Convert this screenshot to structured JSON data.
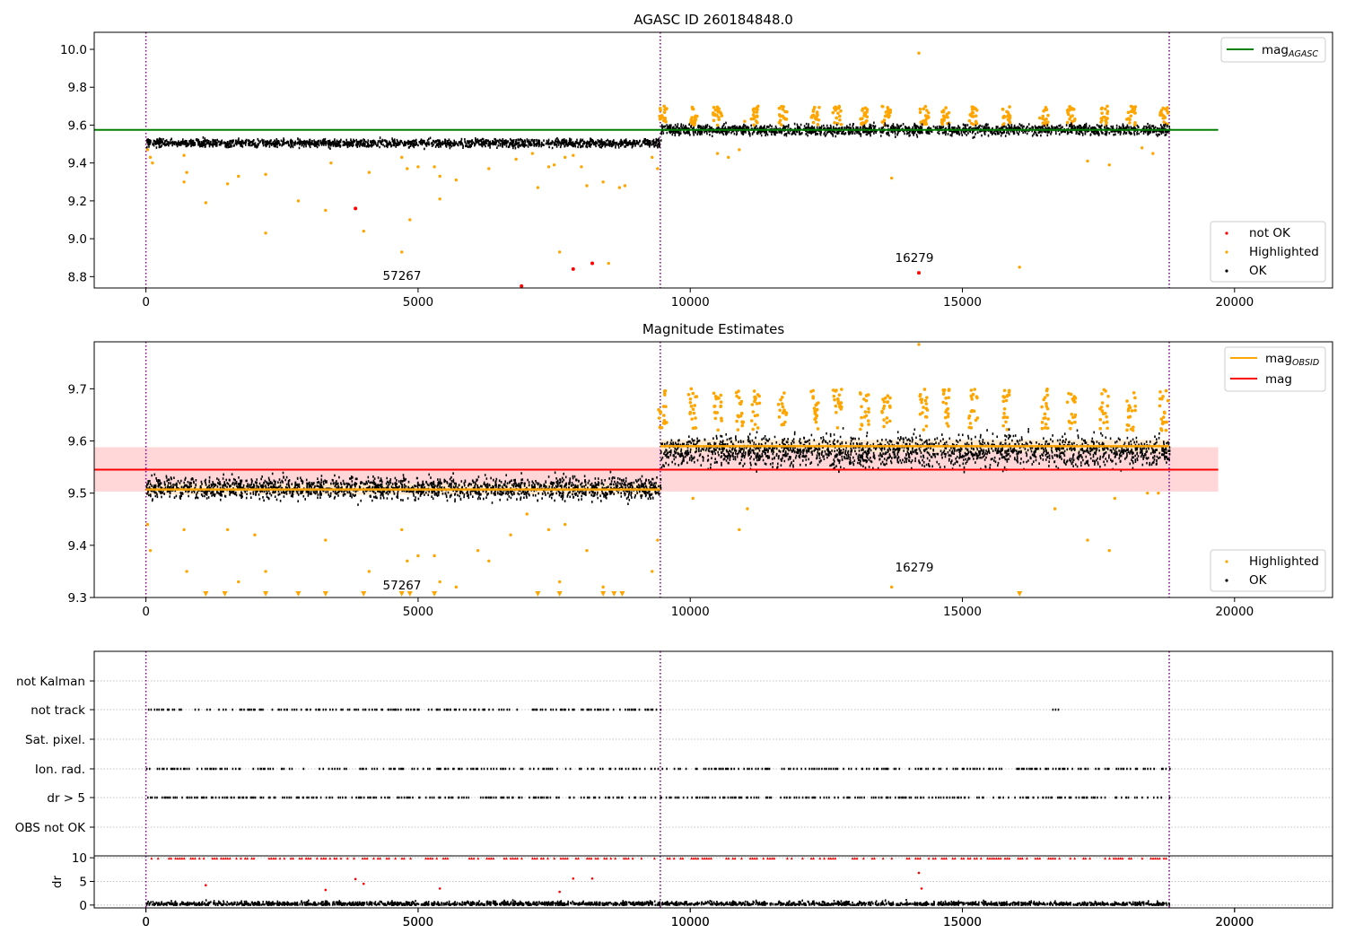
{
  "chart_data": [
    {
      "type": "scatter",
      "title": "AGASC ID 260184848.0",
      "xlim": [
        -950,
        21800
      ],
      "ylim": [
        8.74,
        10.09
      ],
      "x_ticks": [
        0,
        5000,
        10000,
        15000,
        20000
      ],
      "y_ticks": [
        8.8,
        9.0,
        9.2,
        9.4,
        9.6,
        9.8,
        10.0
      ],
      "y_tick_labels": [
        "8.8",
        "9.0",
        "9.2",
        "9.4",
        "9.6",
        "9.8",
        "10.0"
      ],
      "vlines": [
        0,
        9450,
        18800
      ],
      "reference_line": {
        "label": "mag",
        "label_sub": "AGASC",
        "y": 9.575,
        "x_range": [
          -950,
          19700
        ],
        "color": "#008000"
      },
      "legend_top": "top-right",
      "legend_bottom": "bottom-right",
      "legend_bottom_entries": [
        {
          "label": "not OK",
          "color": "#ff0000"
        },
        {
          "label": "Highlighted",
          "color": "#ffa500"
        },
        {
          "label": "OK",
          "color": "#000000"
        }
      ],
      "ok_bands": [
        {
          "x_range": [
            0,
            9450
          ],
          "center": 9.505,
          "width": 0.022
        },
        {
          "x_range": [
            9450,
            18800
          ],
          "center": 9.575,
          "width": 0.03
        }
      ],
      "highlighted_points": [
        [
          30,
          9.47
        ],
        [
          80,
          9.43
        ],
        [
          120,
          9.4
        ],
        [
          700,
          9.44
        ],
        [
          700,
          9.3
        ],
        [
          750,
          9.35
        ],
        [
          1100,
          9.19
        ],
        [
          1500,
          9.29
        ],
        [
          1700,
          9.33
        ],
        [
          2200,
          9.34
        ],
        [
          2200,
          9.03
        ],
        [
          2800,
          9.2
        ],
        [
          3300,
          9.15
        ],
        [
          3400,
          9.4
        ],
        [
          4000,
          9.04
        ],
        [
          4100,
          9.35
        ],
        [
          4700,
          8.93
        ],
        [
          4700,
          9.43
        ],
        [
          4800,
          9.37
        ],
        [
          4850,
          9.1
        ],
        [
          5000,
          9.38
        ],
        [
          5300,
          9.38
        ],
        [
          5400,
          9.21
        ],
        [
          5400,
          9.33
        ],
        [
          5700,
          9.31
        ],
        [
          6300,
          9.37
        ],
        [
          6800,
          9.42
        ],
        [
          7100,
          9.45
        ],
        [
          7200,
          9.27
        ],
        [
          7400,
          9.38
        ],
        [
          7500,
          9.39
        ],
        [
          7600,
          8.93
        ],
        [
          7700,
          9.43
        ],
        [
          7850,
          9.44
        ],
        [
          8000,
          9.38
        ],
        [
          8100,
          9.28
        ],
        [
          8400,
          9.3
        ],
        [
          8500,
          8.87
        ],
        [
          8700,
          9.27
        ],
        [
          8800,
          9.28
        ],
        [
          9300,
          9.43
        ],
        [
          9400,
          9.37
        ],
        [
          10500,
          9.6
        ],
        [
          10500,
          9.45
        ],
        [
          10700,
          9.43
        ],
        [
          10900,
          9.47
        ],
        [
          11000,
          9.62
        ],
        [
          13700,
          9.32
        ],
        [
          14200,
          9.98
        ],
        [
          16050,
          8.85
        ],
        [
          17300,
          9.41
        ],
        [
          17700,
          9.39
        ],
        [
          18300,
          9.48
        ],
        [
          18500,
          9.45
        ]
      ],
      "highlighted_clusters_x": [
        9500,
        10050,
        10500,
        11200,
        11700,
        12300,
        12700,
        13200,
        13600,
        14300,
        14700,
        15200,
        15800,
        16500,
        17000,
        17600,
        18100,
        18700
      ],
      "highlighted_cluster_range": [
        9.6,
        9.7
      ],
      "not_ok_points": [
        [
          3850,
          9.16
        ],
        [
          6900,
          8.75
        ],
        [
          7850,
          8.84
        ],
        [
          8200,
          8.87
        ],
        [
          14200,
          8.82
        ]
      ],
      "annotations": [
        {
          "text": "57267",
          "x": 4700,
          "y": 8.76
        },
        {
          "text": "16279",
          "x": 14200,
          "y": 8.86
        }
      ]
    },
    {
      "type": "scatter",
      "title": "Magnitude Estimates",
      "xlim": [
        -950,
        21800
      ],
      "ylim": [
        9.3,
        9.79
      ],
      "x_ticks": [
        0,
        5000,
        10000,
        15000,
        20000
      ],
      "y_ticks": [
        9.3,
        9.4,
        9.5,
        9.6,
        9.7
      ],
      "y_tick_labels": [
        "9.3",
        "9.4",
        "9.5",
        "9.6",
        "9.7"
      ],
      "vlines": [
        0,
        9450,
        18800
      ],
      "mag_line": {
        "label": "mag",
        "y": 9.545,
        "band": [
          9.503,
          9.588
        ],
        "x_range": [
          -950,
          19700
        ],
        "color": "#ff0000"
      },
      "obsid_mag": {
        "label": "mag",
        "label_sub": "OBSID",
        "color": "#ffa500",
        "segments": [
          {
            "x_range": [
              0,
              9450
            ],
            "y": 9.507,
            "band": [
              9.497,
              9.518
            ]
          },
          {
            "x_range": [
              9450,
              18800
            ],
            "y": 9.59,
            "band": [
              9.578,
              9.602
            ]
          }
        ]
      },
      "legend_top": "top-right",
      "legend_bottom": "bottom-right",
      "legend_bottom_entries": [
        {
          "label": "Highlighted",
          "color": "#ffa500"
        },
        {
          "label": "OK",
          "color": "#000000"
        }
      ],
      "ok_bands": [
        {
          "x_range": [
            0,
            9450
          ],
          "center": 9.51,
          "width": 0.022
        },
        {
          "x_range": [
            9450,
            18800
          ],
          "center": 9.58,
          "width": 0.032
        }
      ],
      "highlighted_points": [
        [
          30,
          9.44
        ],
        [
          80,
          9.39
        ],
        [
          700,
          9.43
        ],
        [
          750,
          9.35
        ],
        [
          1500,
          9.43
        ],
        [
          1700,
          9.33
        ],
        [
          2000,
          9.42
        ],
        [
          2200,
          9.35
        ],
        [
          3300,
          9.41
        ],
        [
          4100,
          9.35
        ],
        [
          4700,
          9.43
        ],
        [
          4800,
          9.37
        ],
        [
          5000,
          9.38
        ],
        [
          5300,
          9.38
        ],
        [
          5400,
          9.33
        ],
        [
          5700,
          9.32
        ],
        [
          6100,
          9.39
        ],
        [
          6300,
          9.37
        ],
        [
          6700,
          9.42
        ],
        [
          7000,
          9.46
        ],
        [
          7400,
          9.43
        ],
        [
          7600,
          9.33
        ],
        [
          7700,
          9.44
        ],
        [
          8100,
          9.39
        ],
        [
          8400,
          9.32
        ],
        [
          9300,
          9.35
        ],
        [
          9400,
          9.41
        ],
        [
          10050,
          9.49
        ],
        [
          10900,
          9.43
        ],
        [
          11050,
          9.47
        ],
        [
          13700,
          9.32
        ],
        [
          16700,
          9.47
        ],
        [
          17300,
          9.41
        ],
        [
          17700,
          9.39
        ],
        [
          17800,
          9.49
        ],
        [
          18400,
          9.5
        ],
        [
          18600,
          9.5
        ],
        [
          14200,
          9.785
        ]
      ],
      "clipped_markers_x": [
        1100,
        1450,
        2200,
        2800,
        3300,
        4000,
        4700,
        4850,
        5300,
        7200,
        7600,
        8400,
        8600,
        8750,
        16050
      ],
      "highlighted_clusters_x": [
        9500,
        10050,
        10500,
        10900,
        11200,
        11700,
        12300,
        12700,
        13200,
        13600,
        14300,
        14700,
        15200,
        15800,
        16500,
        17000,
        17600,
        18100,
        18700
      ],
      "highlighted_cluster_range": [
        9.62,
        9.7
      ],
      "annotations": [
        {
          "text": "57267",
          "x": 4700,
          "y": 9.305
        },
        {
          "text": "16279",
          "x": 14200,
          "y": 9.35
        }
      ]
    },
    {
      "type": "scatter",
      "title": "",
      "xlim": [
        -950,
        21800
      ],
      "x_ticks": [
        0,
        5000,
        10000,
        15000,
        20000
      ],
      "vlines": [
        0,
        9450,
        18800
      ],
      "flag_rows": [
        "not Kalman",
        "not track",
        "Sat. pixel.",
        "Ion. rad.",
        "dr > 5",
        "OBS not OK"
      ],
      "flags": {
        "not track": {
          "segments": [
            [
              0,
              9450
            ]
          ],
          "density": 0.9,
          "extra_x": [
            16650,
            16700,
            16750
          ]
        },
        "Ion. rad.": {
          "segments": [
            [
              0,
              9450
            ],
            [
              9450,
              18800
            ]
          ],
          "density": 1.0
        },
        "dr > 5": {
          "segments": [
            [
              0,
              9450
            ],
            [
              9450,
              18800
            ]
          ],
          "density": 1.0
        }
      }
    },
    {
      "type": "scatter",
      "title": "",
      "ylabel": "dr",
      "xlim": [
        -950,
        21800
      ],
      "ylim": [
        -0.6,
        10.4
      ],
      "x_ticks": [
        0,
        5000,
        10000,
        15000,
        20000
      ],
      "y_ticks": [
        0,
        5,
        10
      ],
      "y_tick_labels": [
        "0",
        "5",
        "10"
      ],
      "vlines": [
        0,
        9450,
        18800
      ],
      "series": [
        {
          "name": "dr",
          "color": "#000000",
          "range": [
            0,
            1.8
          ]
        },
        {
          "name": "dr > 10 clipped",
          "color": "#ff0000",
          "y": 9.9
        }
      ],
      "red_points": [
        [
          1100,
          4.2
        ],
        [
          3300,
          3.2
        ],
        [
          3850,
          5.5
        ],
        [
          4000,
          4.5
        ],
        [
          5400,
          3.5
        ],
        [
          7600,
          2.8
        ],
        [
          7850,
          5.6
        ],
        [
          8200,
          5.6
        ],
        [
          14200,
          6.8
        ],
        [
          14250,
          3.5
        ]
      ]
    }
  ],
  "ui": {
    "x_tick_labels": [
      "0",
      "5000",
      "10000",
      "15000",
      "20000"
    ],
    "legend1_mag": "mag",
    "legend1_sub": "AGASC",
    "legend2_mag_obsid": "mag",
    "legend2_sub": "OBSID",
    "legend2_mag": "mag"
  },
  "colors": {
    "ok": "#000000",
    "highlighted": "#ffa500",
    "not_ok": "#ff0000",
    "agasc": "#008000",
    "vline": "#800080",
    "band_red": "#ffd7d9",
    "band_orange": "#ffe9cc"
  }
}
